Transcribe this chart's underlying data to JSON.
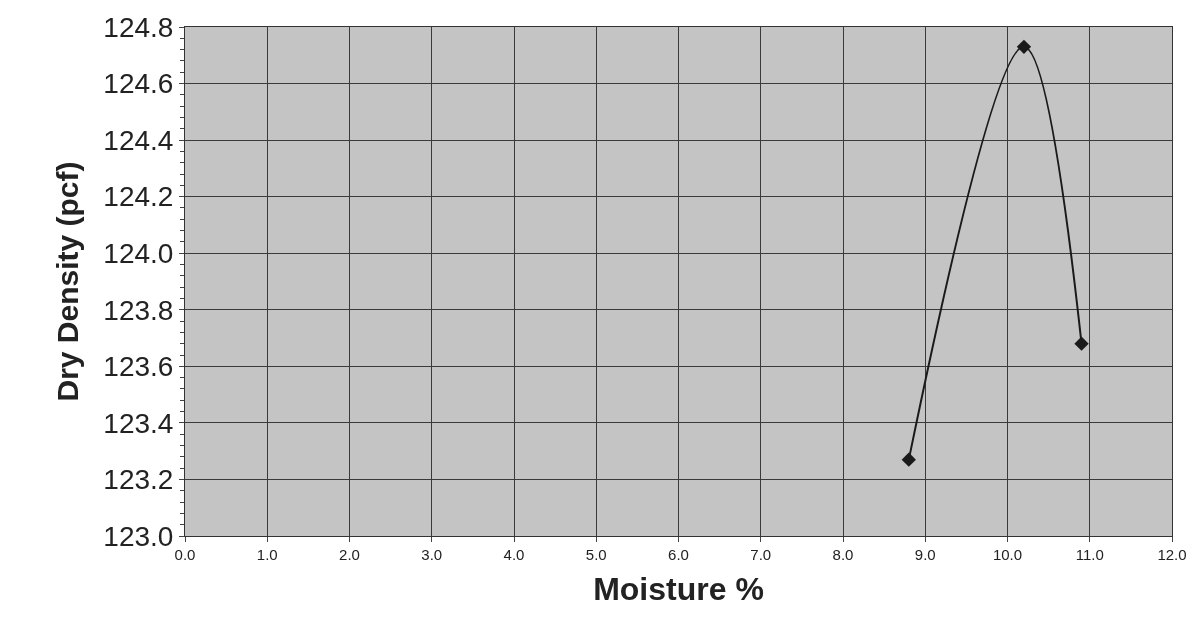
{
  "chart_data": {
    "type": "line",
    "xlabel": "Moisture %",
    "ylabel": "Dry Density (pcf)",
    "x": [
      8.8,
      10.2,
      10.9
    ],
    "series": [
      {
        "color": "#1a1a1a",
        "values": [
          123.27,
          124.73,
          123.68
        ]
      }
    ],
    "xlim": [
      0,
      12
    ],
    "xticks": [
      {
        "value": 0,
        "label": "0.0"
      },
      {
        "value": 1,
        "label": "1.0"
      },
      {
        "value": 2,
        "label": "2.0"
      },
      {
        "value": 3,
        "label": "3.0"
      },
      {
        "value": 4,
        "label": "4.0"
      },
      {
        "value": 5,
        "label": "5.0"
      },
      {
        "value": 6,
        "label": "6.0"
      },
      {
        "value": 7,
        "label": "7.0"
      },
      {
        "value": 8,
        "label": "8.0"
      },
      {
        "value": 9,
        "label": "9.0"
      },
      {
        "value": 10,
        "label": "10.0"
      },
      {
        "value": 11,
        "label": "11.0"
      },
      {
        "value": 12,
        "label": "12.0"
      }
    ],
    "ylim": [
      123.0,
      124.8
    ],
    "yticks": [
      {
        "value": 123.0,
        "label": "123.0"
      },
      {
        "value": 123.2,
        "label": "123.2"
      },
      {
        "value": 123.4,
        "label": "123.4"
      },
      {
        "value": 123.6,
        "label": "123.6"
      },
      {
        "value": 123.8,
        "label": "123.8"
      },
      {
        "value": 124.0,
        "label": "124.0"
      },
      {
        "value": 124.2,
        "label": "124.2"
      },
      {
        "value": 124.4,
        "label": "124.4"
      },
      {
        "value": 124.6,
        "label": "124.6"
      },
      {
        "value": 124.8,
        "label": "124.8"
      }
    ],
    "grid": true,
    "marker": "diamond",
    "line_style": "solid",
    "legend": false
  }
}
